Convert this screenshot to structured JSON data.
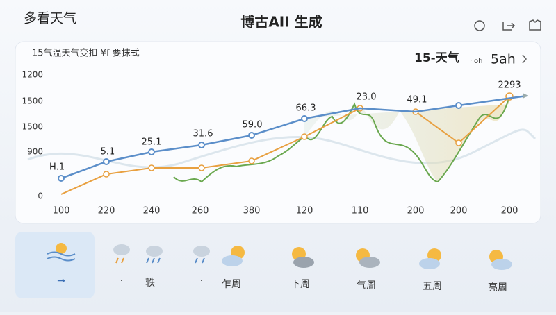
{
  "header": {
    "app_name": "多看天气",
    "title": "博古AII 生成"
  },
  "chart_card": {
    "subtitle": "15气温天气变扣 ¥f 要抹式",
    "range_label": "15-天气",
    "range_small": "·ıoh",
    "range_big": "5ah",
    "y_labels": [
      "1200",
      "1500",
      "1500",
      "900",
      "0"
    ],
    "x_labels": [
      "100",
      "220",
      "240",
      "260",
      "380",
      "120",
      "110",
      "200",
      "200",
      "200"
    ],
    "point_labels": [
      "H.1",
      "5.1",
      "25.1",
      "31.6",
      "59.0",
      "66.3",
      "23.0",
      "49.1",
      "2293"
    ]
  },
  "forecast": {
    "labels": [
      "→",
      "·",
      "轶",
      "·",
      "乍周",
      "下周",
      "气周",
      "五周",
      "亮周"
    ]
  }
}
